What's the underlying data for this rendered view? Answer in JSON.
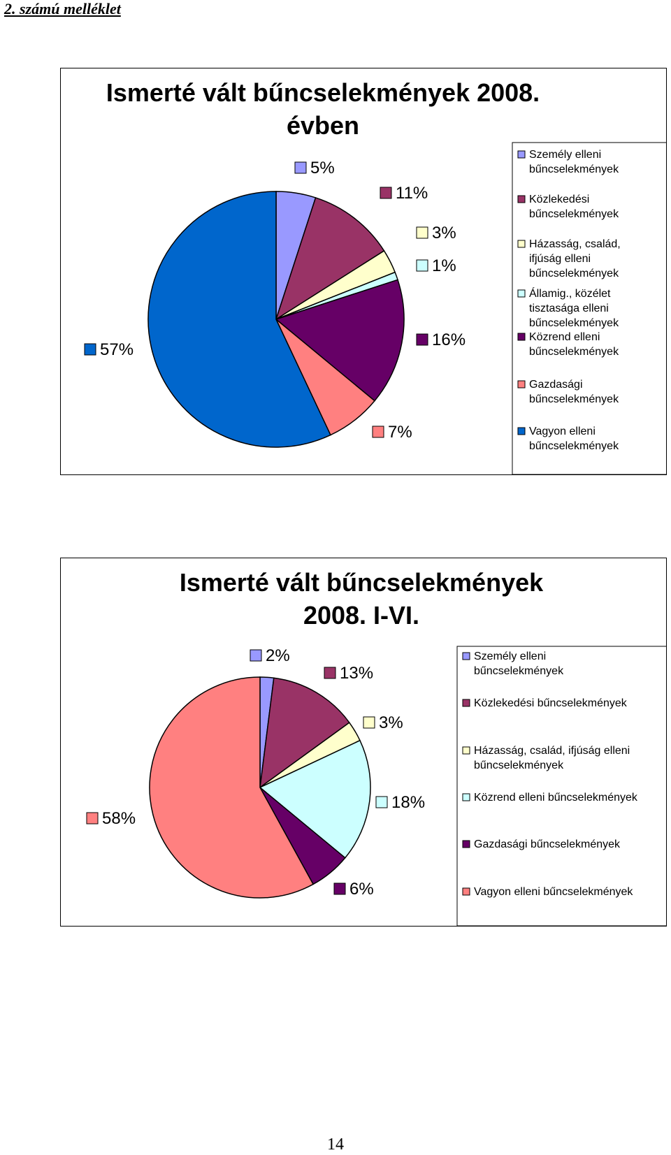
{
  "header": "2. számú melléklet",
  "page_number": "14",
  "chart_data": [
    {
      "type": "pie",
      "title": [
        "Ismerté vált bűncselekmények 2008.",
        "évben"
      ],
      "categories": [
        "Személy elleni bűncselekmények",
        "Közlekedési bűncselekmények",
        "Házasság, család, ifjúság elleni bűncselekmények",
        "Államig., közélet tisztasága elleni bűncselekmények",
        "Közrend elleni bűncselekmények",
        "Gazdasági bűncselekmények",
        "Vagyon elleni bűncselekmények"
      ],
      "values": [
        5,
        11,
        3,
        1,
        16,
        7,
        57
      ],
      "labels": [
        "5%",
        "11%",
        "3%",
        "1%",
        "16%",
        "7%",
        "57%"
      ],
      "colors": [
        "#9999ff",
        "#993366",
        "#ffffcc",
        "#ccffff",
        "#660066",
        "#ff8080",
        "#0066cc"
      ],
      "legend_lines": [
        [
          "Személy elleni",
          "bűncselekmények"
        ],
        [
          "Közlekedési",
          "bűncselekmények"
        ],
        [
          "Házasság, család,",
          "ifjúság elleni",
          "bűncselekmények"
        ],
        [
          "Államig., közélet",
          "tisztasága elleni",
          "bűncselekmények"
        ],
        [
          "Közrend elleni",
          "bűncselekmények"
        ],
        [
          "Gazdasági",
          "bűncselekmények"
        ],
        [
          "Vagyon elleni",
          "bűncselekmények"
        ]
      ],
      "legend_position": "right"
    },
    {
      "type": "pie",
      "title": [
        "Ismerté vált bűncselekmények",
        "2008. I-VI."
      ],
      "categories": [
        "Személy elleni bűncselekmények",
        "Közlekedési bűncselekmények",
        "Házasság, család, ifjúság elleni bűncselekmények",
        "Közrend elleni bűncselekmények",
        "Gazdasági bűncselekmények",
        "Vagyon elleni bűncselekmények"
      ],
      "values": [
        2,
        13,
        3,
        18,
        6,
        58
      ],
      "labels": [
        "2%",
        "13%",
        "3%",
        "18%",
        "6%",
        "58%"
      ],
      "colors": [
        "#9999ff",
        "#993366",
        "#ffffcc",
        "#ccffff",
        "#660066",
        "#ff8080"
      ],
      "legend_lines": [
        [
          "Személy elleni",
          "bűncselekmények"
        ],
        [
          "Közlekedési bűncselekmények"
        ],
        [
          "Házasság, család, ifjúság elleni",
          "bűncselekmények"
        ],
        [
          "Közrend elleni bűncselekmények"
        ],
        [
          "Gazdasági bűncselekmények"
        ],
        [
          "Vagyon elleni bűncselekmények"
        ]
      ],
      "legend_position": "right"
    }
  ]
}
